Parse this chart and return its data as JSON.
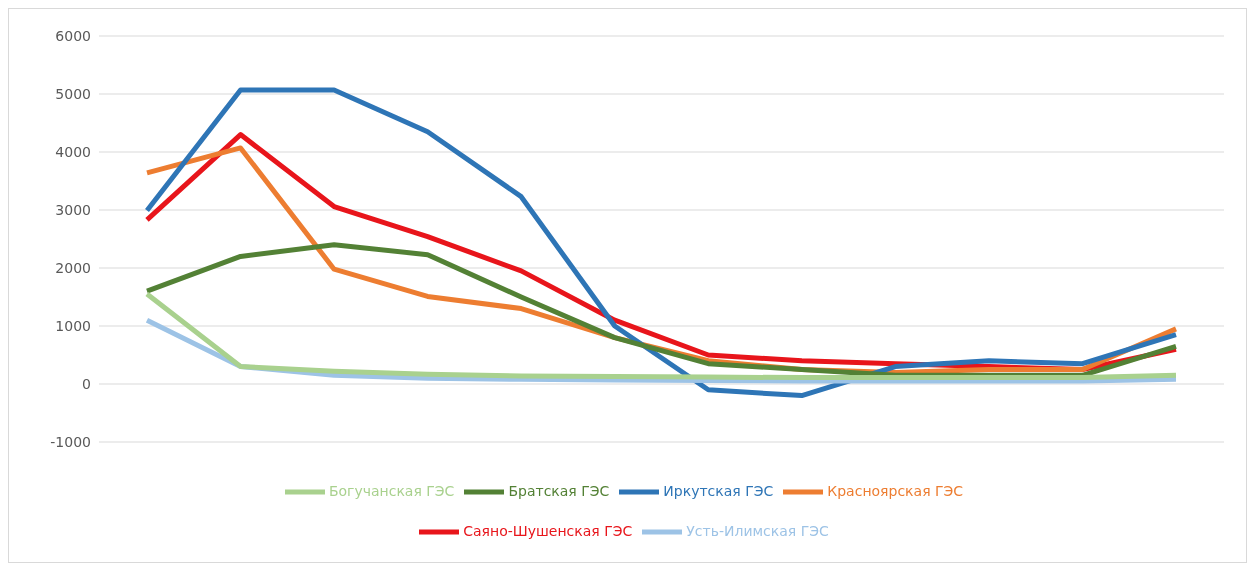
{
  "chart_data": {
    "type": "line",
    "categories": [
      null,
      null,
      null,
      null,
      null,
      null,
      null,
      null,
      null,
      null,
      null,
      null
    ],
    "ylim": [
      -1000,
      6000
    ],
    "yticks": [
      -1000,
      0,
      1000,
      2000,
      3000,
      4000,
      5000,
      6000
    ],
    "grid": "y",
    "legend": "bottom",
    "marker": "none",
    "line_style": "solid",
    "series": [
      {
        "name": "Саяно-Шушенская ГЭС",
        "color": "#e8151b",
        "values": [
          2830,
          4300,
          3060,
          2540,
          1950,
          1100,
          500,
          400,
          350,
          300,
          250,
          600
        ]
      },
      {
        "name": "Красноярская ГЭС",
        "color": "#ed7d31",
        "values": [
          3640,
          4070,
          1980,
          1510,
          1300,
          800,
          400,
          250,
          200,
          250,
          250,
          950
        ]
      },
      {
        "name": "Иркутская ГЭС",
        "color": "#2e75b6",
        "values": [
          2990,
          5070,
          5070,
          4350,
          3230,
          1000,
          -100,
          -200,
          300,
          400,
          350,
          850
        ]
      },
      {
        "name": "Братская ГЭС",
        "color": "#538135",
        "values": [
          1600,
          2200,
          2400,
          2230,
          1500,
          800,
          350,
          250,
          150,
          150,
          150,
          650
        ]
      },
      {
        "name": "Усть-Илимская ГЭС",
        "color": "#9dc3e6",
        "values": [
          1100,
          300,
          150,
          100,
          80,
          70,
          60,
          50,
          50,
          50,
          50,
          80
        ]
      },
      {
        "name": "Богучанская ГЭС",
        "color": "#a9d18e",
        "values": [
          1550,
          300,
          220,
          170,
          140,
          130,
          120,
          110,
          110,
          110,
          110,
          150
        ]
      }
    ]
  }
}
